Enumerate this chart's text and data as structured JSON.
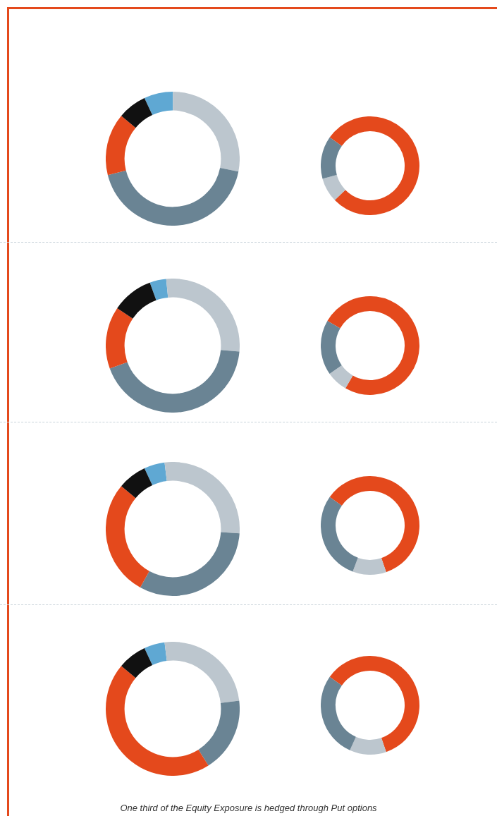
{
  "chart_data": [
    {
      "type": "donut",
      "categories": [
        null,
        null,
        null,
        null,
        null
      ],
      "values": [
        7,
        28,
        43,
        15,
        7
      ],
      "colors": [
        "#5fa8d3",
        "#bcc6ce",
        "#6a8494",
        "#e4491c",
        "#111111"
      ]
    },
    {
      "type": "donut",
      "categories": [
        null,
        null,
        null
      ],
      "values": [
        78,
        8,
        14
      ],
      "colors": [
        "#e4491c",
        "#bcc6ce",
        "#6a8494"
      ]
    },
    {
      "type": "donut",
      "categories": [
        null,
        null,
        null,
        null,
        null
      ],
      "values": [
        4,
        28,
        43,
        15,
        10
      ],
      "colors": [
        "#5fa8d3",
        "#bcc6ce",
        "#6a8494",
        "#e4491c",
        "#111111"
      ]
    },
    {
      "type": "donut",
      "categories": [
        null,
        null,
        null
      ],
      "values": [
        75,
        7,
        18
      ],
      "colors": [
        "#e4491c",
        "#bcc6ce",
        "#6a8494"
      ]
    },
    {
      "type": "donut",
      "categories": [
        null,
        null,
        null,
        null,
        null
      ],
      "values": [
        5,
        28,
        32,
        28,
        7
      ],
      "colors": [
        "#5fa8d3",
        "#bcc6ce",
        "#6a8494",
        "#e4491c",
        "#111111"
      ]
    },
    {
      "type": "donut",
      "categories": [
        null,
        null,
        null
      ],
      "values": [
        60,
        11,
        29
      ],
      "colors": [
        "#e4491c",
        "#bcc6ce",
        "#6a8494"
      ]
    },
    {
      "type": "donut",
      "categories": [
        null,
        null,
        null,
        null,
        null
      ],
      "values": [
        5,
        25,
        18,
        45,
        7
      ],
      "colors": [
        "#5fa8d3",
        "#bcc6ce",
        "#6a8494",
        "#e4491c",
        "#111111"
      ]
    },
    {
      "type": "donut",
      "categories": [
        null,
        null,
        null
      ],
      "values": [
        60,
        12,
        28
      ],
      "colors": [
        "#e4491c",
        "#bcc6ce",
        "#6a8494"
      ],
      "annotations": [
        "One third of the Equity Exposure is hedged through Put options"
      ]
    }
  ]
}
